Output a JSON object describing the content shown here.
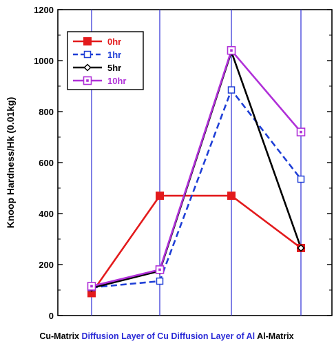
{
  "chart_data": {
    "type": "line",
    "title": "",
    "xlabel": "",
    "ylabel": "Knoop Hardness/Hk (0.01kg)",
    "ylim": [
      0,
      1200
    ],
    "yticks": [
      0,
      200,
      400,
      600,
      800,
      1000,
      1200
    ],
    "grid": true,
    "legend_position": "top-left",
    "categories": [
      "Cu-Matrix",
      "Diffusion Layer of Cu",
      "Diffusion Layer of Al",
      "Al-Matrix"
    ],
    "category_colors": [
      "#000000",
      "#2b2bd6",
      "#2b2bd6",
      "#000000"
    ],
    "grid_color": "#3b3bd9",
    "series": [
      {
        "name": "0hr",
        "values": [
          88,
          470,
          470,
          265
        ],
        "color": "#e31a1c",
        "dash": "",
        "marker": "filled-square"
      },
      {
        "name": "1hr",
        "values": [
          110,
          135,
          885,
          535
        ],
        "color": "#1f3fd6",
        "dash": "9,5",
        "marker": "open-square"
      },
      {
        "name": "5hr",
        "values": [
          108,
          175,
          1035,
          265
        ],
        "color": "#000000",
        "dash": "",
        "marker": "diamond"
      },
      {
        "name": "10hr",
        "values": [
          115,
          180,
          1040,
          720
        ],
        "color": "#b030d8",
        "dash": "",
        "marker": "open-square-dot"
      }
    ]
  }
}
